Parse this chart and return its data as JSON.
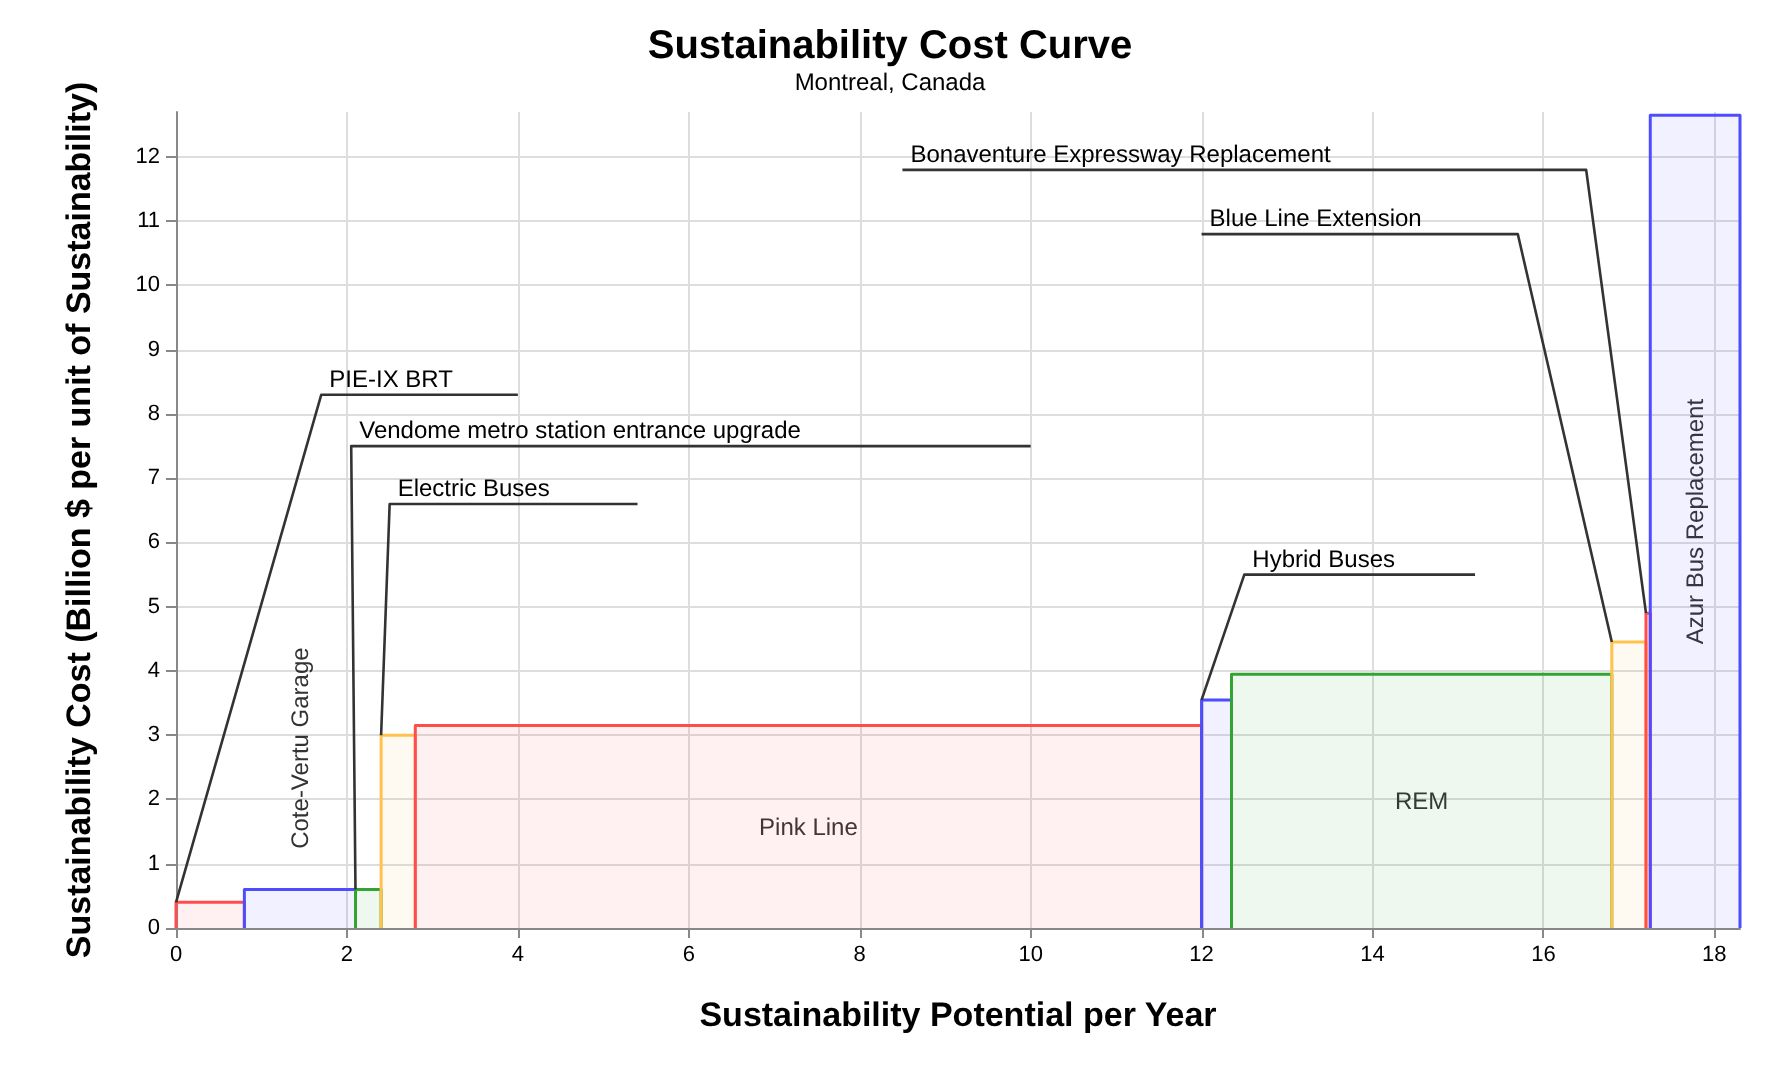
{
  "chart_data": {
    "type": "area",
    "title": "Sustainability Cost Curve",
    "subtitle": "Montreal, Canada",
    "xlabel": "Sustainability Potential per Year",
    "ylabel": "Sustainability Cost (Billion $ per unit of Sustainability)",
    "xlim": [
      0,
      18.3
    ],
    "xticks": [
      0,
      2,
      4,
      6,
      8,
      10,
      12,
      14,
      16,
      18
    ],
    "ylim": [
      0,
      12.7
    ],
    "yticks": [
      0,
      1,
      2,
      3,
      4,
      5,
      6,
      7,
      8,
      9,
      10,
      11,
      12
    ],
    "grid": true,
    "legend": false,
    "series": [
      {
        "name": "PIE-IX BRT",
        "color": "#ff4d4d",
        "x": [
          0,
          0.8
        ],
        "values": [
          0.4,
          0.4
        ]
      },
      {
        "name": "Cote-Vertu Garage",
        "color": "#4d4dff",
        "x": [
          0.8,
          2.1
        ],
        "values": [
          0.6,
          0.6
        ]
      },
      {
        "name": "Vendome metro station entrance upgrade",
        "color": "#33a333",
        "x": [
          2.1,
          2.4
        ],
        "values": [
          0.6,
          0.6
        ]
      },
      {
        "name": "Electric Buses",
        "color": "#ffc34d",
        "x": [
          2.4,
          2.8
        ],
        "values": [
          3.0,
          3.0
        ]
      },
      {
        "name": "Pink Line",
        "color": "#ff4d4d",
        "x": [
          2.8,
          12.0
        ],
        "values": [
          3.15,
          3.15
        ]
      },
      {
        "name": "Hybrid Buses",
        "color": "#4d4dff",
        "x": [
          12.0,
          12.35
        ],
        "values": [
          3.55,
          3.55
        ]
      },
      {
        "name": "REM",
        "color": "#33a333",
        "x": [
          12.35,
          16.8
        ],
        "values": [
          3.95,
          3.95
        ]
      },
      {
        "name": "Blue Line Extension",
        "color": "#ffc34d",
        "x": [
          16.8,
          17.2
        ],
        "values": [
          4.45,
          4.45
        ]
      },
      {
        "name": "Bonaventure Expressway Replacement",
        "color": "#ff4d4d",
        "x": [
          17.2,
          17.25
        ],
        "values": [
          4.9,
          4.9
        ]
      },
      {
        "name": "Azur Bus Replacement",
        "color": "#4d4dff",
        "x": [
          17.25,
          18.3
        ],
        "values": [
          12.65,
          12.65
        ]
      }
    ]
  }
}
